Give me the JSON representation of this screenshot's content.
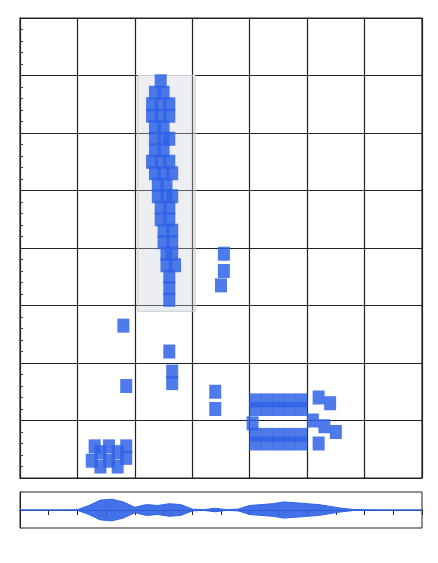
{
  "chart_data": [
    {
      "type": "scatter",
      "xlim": [
        0,
        7
      ],
      "ylim": [
        0,
        8
      ],
      "xticks": [
        0,
        1,
        2,
        3,
        4,
        5,
        6,
        7
      ],
      "yticks": [
        0,
        1,
        2,
        3,
        4,
        5,
        6,
        7,
        8
      ],
      "grid": true,
      "tick_labels": false,
      "color": "#2f63e6",
      "marker": "square",
      "highlight_x": [
        2.05,
        3.05
      ],
      "highlight_y": [
        2.9,
        7.0
      ],
      "points": [
        [
          2.45,
          6.9
        ],
        [
          2.35,
          6.7
        ],
        [
          2.5,
          6.7
        ],
        [
          2.3,
          6.5
        ],
        [
          2.45,
          6.5
        ],
        [
          2.6,
          6.5
        ],
        [
          2.3,
          6.3
        ],
        [
          2.45,
          6.3
        ],
        [
          2.6,
          6.3
        ],
        [
          2.35,
          6.1
        ],
        [
          2.5,
          6.1
        ],
        [
          2.35,
          5.9
        ],
        [
          2.5,
          5.9
        ],
        [
          2.6,
          5.9
        ],
        [
          2.35,
          5.7
        ],
        [
          2.5,
          5.7
        ],
        [
          2.3,
          5.5
        ],
        [
          2.45,
          5.5
        ],
        [
          2.6,
          5.5
        ],
        [
          2.35,
          5.3
        ],
        [
          2.5,
          5.3
        ],
        [
          2.65,
          5.3
        ],
        [
          2.4,
          5.1
        ],
        [
          2.55,
          5.1
        ],
        [
          2.4,
          4.9
        ],
        [
          2.55,
          4.9
        ],
        [
          2.65,
          4.9
        ],
        [
          2.45,
          4.7
        ],
        [
          2.6,
          4.7
        ],
        [
          2.45,
          4.5
        ],
        [
          2.6,
          4.5
        ],
        [
          2.5,
          4.3
        ],
        [
          2.65,
          4.3
        ],
        [
          2.5,
          4.1
        ],
        [
          2.65,
          4.1
        ],
        [
          2.55,
          3.9
        ],
        [
          2.65,
          3.9
        ],
        [
          2.55,
          3.7
        ],
        [
          2.7,
          3.7
        ],
        [
          2.6,
          3.5
        ],
        [
          2.6,
          3.3
        ],
        [
          2.6,
          3.1
        ],
        [
          1.25,
          0.3
        ],
        [
          1.4,
          0.2
        ],
        [
          1.4,
          0.45
        ],
        [
          1.55,
          0.3
        ],
        [
          1.55,
          0.55
        ],
        [
          1.7,
          0.2
        ],
        [
          1.7,
          0.45
        ],
        [
          1.85,
          0.35
        ],
        [
          1.85,
          0.55
        ],
        [
          1.3,
          0.55
        ],
        [
          4.1,
          1.35
        ],
        [
          4.3,
          1.35
        ],
        [
          4.5,
          1.35
        ],
        [
          4.7,
          1.35
        ],
        [
          4.9,
          1.35
        ],
        [
          4.1,
          1.2
        ],
        [
          4.3,
          1.2
        ],
        [
          4.5,
          1.2
        ],
        [
          4.7,
          1.2
        ],
        [
          4.9,
          1.2
        ],
        [
          4.1,
          0.75
        ],
        [
          4.3,
          0.75
        ],
        [
          4.5,
          0.75
        ],
        [
          4.7,
          0.75
        ],
        [
          4.9,
          0.75
        ],
        [
          4.1,
          0.6
        ],
        [
          4.3,
          0.6
        ],
        [
          4.5,
          0.6
        ],
        [
          4.7,
          0.6
        ],
        [
          4.9,
          0.6
        ],
        [
          4.05,
          0.95
        ],
        [
          5.1,
          1.0
        ],
        [
          5.2,
          1.4
        ],
        [
          5.4,
          1.3
        ],
        [
          5.3,
          0.9
        ],
        [
          5.5,
          0.8
        ],
        [
          5.2,
          0.6
        ],
        [
          3.55,
          3.9
        ],
        [
          3.55,
          3.6
        ],
        [
          3.5,
          3.35
        ],
        [
          1.85,
          1.6
        ],
        [
          2.65,
          1.65
        ],
        [
          2.65,
          1.85
        ],
        [
          3.4,
          1.5
        ],
        [
          3.4,
          1.2
        ],
        [
          1.8,
          2.65
        ],
        [
          2.6,
          2.2
        ]
      ]
    },
    {
      "type": "line",
      "xlim": [
        0,
        7
      ],
      "ylim": [
        -1,
        1
      ],
      "xticks": [
        0,
        0.5,
        1,
        1.5,
        2,
        2.5,
        3,
        3.5,
        4,
        4.5,
        5,
        5.5,
        6,
        6.5,
        7
      ],
      "yticks": [],
      "grid": false,
      "tick_labels": false,
      "x": [
        0,
        0.2,
        0.4,
        0.6,
        0.8,
        1.0,
        1.2,
        1.4,
        1.6,
        1.8,
        2.0,
        2.2,
        2.4,
        2.6,
        2.8,
        3.0,
        3.2,
        3.4,
        3.6,
        3.8,
        4.0,
        4.2,
        4.4,
        4.6,
        4.8,
        5.0,
        5.2,
        5.4,
        5.6,
        5.8,
        6.0,
        6.2,
        6.4,
        6.6,
        6.8,
        7.0
      ],
      "series": [
        {
          "color": "#2f63e6",
          "values": [
            0,
            0,
            0,
            0,
            0,
            0.02,
            0.25,
            0.55,
            0.6,
            0.45,
            0.15,
            0.3,
            0.25,
            0.35,
            0.3,
            0.05,
            0.02,
            0.1,
            0.02,
            0.05,
            0.25,
            0.3,
            0.35,
            0.45,
            0.4,
            0.35,
            0.3,
            0.2,
            0.1,
            0.03,
            0.02,
            0,
            0,
            0,
            0,
            0
          ]
        },
        {
          "color": "#2f63e6",
          "values": [
            0,
            0,
            0,
            0,
            0,
            -0.02,
            -0.25,
            -0.55,
            -0.6,
            -0.45,
            -0.15,
            -0.3,
            -0.25,
            -0.35,
            -0.3,
            -0.05,
            -0.02,
            -0.1,
            -0.02,
            -0.05,
            -0.25,
            -0.3,
            -0.35,
            -0.45,
            -0.4,
            -0.35,
            -0.3,
            -0.2,
            -0.1,
            -0.03,
            -0.02,
            0,
            0,
            0,
            0,
            0
          ]
        }
      ]
    }
  ]
}
